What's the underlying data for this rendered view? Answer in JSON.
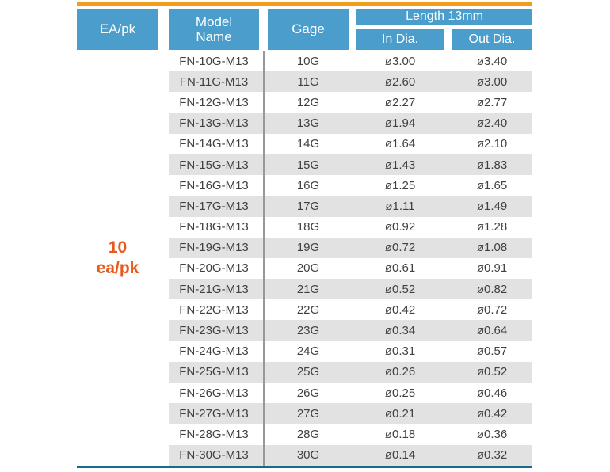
{
  "colors": {
    "top_bar": "#F39C1A",
    "header_blue": "#4B9DCB",
    "stripe_gray": "#E2E2E2",
    "bottom_line_teal": "#1C6A85",
    "ea_pk_orange": "#E8591C",
    "data_text": "#404040"
  },
  "table": {
    "headers": {
      "ea_pk": "EA/pk",
      "model_name": "Model\nName",
      "gage": "Gage",
      "length_group": "Length 13mm",
      "in_dia": "In Dia.",
      "out_dia": "Out Dia."
    },
    "ea_pk_value": {
      "line1": "10",
      "line2": "ea/pk"
    },
    "rows": [
      {
        "model": "FN-10G-M13",
        "gage": "10G",
        "in_dia": "ø3.00",
        "out_dia": "ø3.40"
      },
      {
        "model": "FN-11G-M13",
        "gage": "11G",
        "in_dia": "ø2.60",
        "out_dia": "ø3.00"
      },
      {
        "model": "FN-12G-M13",
        "gage": "12G",
        "in_dia": "ø2.27",
        "out_dia": "ø2.77"
      },
      {
        "model": "FN-13G-M13",
        "gage": "13G",
        "in_dia": "ø1.94",
        "out_dia": "ø2.40"
      },
      {
        "model": "FN-14G-M13",
        "gage": "14G",
        "in_dia": "ø1.64",
        "out_dia": "ø2.10"
      },
      {
        "model": "FN-15G-M13",
        "gage": "15G",
        "in_dia": "ø1.43",
        "out_dia": "ø1.83"
      },
      {
        "model": "FN-16G-M13",
        "gage": "16G",
        "in_dia": "ø1.25",
        "out_dia": "ø1.65"
      },
      {
        "model": "FN-17G-M13",
        "gage": "17G",
        "in_dia": "ø1.11",
        "out_dia": "ø1.49"
      },
      {
        "model": "FN-18G-M13",
        "gage": "18G",
        "in_dia": "ø0.92",
        "out_dia": "ø1.28"
      },
      {
        "model": "FN-19G-M13",
        "gage": "19G",
        "in_dia": "ø0.72",
        "out_dia": "ø1.08"
      },
      {
        "model": "FN-20G-M13",
        "gage": "20G",
        "in_dia": "ø0.61",
        "out_dia": "ø0.91"
      },
      {
        "model": "FN-21G-M13",
        "gage": "21G",
        "in_dia": "ø0.52",
        "out_dia": "ø0.82"
      },
      {
        "model": "FN-22G-M13",
        "gage": "22G",
        "in_dia": "ø0.42",
        "out_dia": "ø0.72"
      },
      {
        "model": "FN-23G-M13",
        "gage": "23G",
        "in_dia": "ø0.34",
        "out_dia": "ø0.64"
      },
      {
        "model": "FN-24G-M13",
        "gage": "24G",
        "in_dia": "ø0.31",
        "out_dia": "ø0.57"
      },
      {
        "model": "FN-25G-M13",
        "gage": "25G",
        "in_dia": "ø0.26",
        "out_dia": "ø0.52"
      },
      {
        "model": "FN-26G-M13",
        "gage": "26G",
        "in_dia": "ø0.25",
        "out_dia": "ø0.46"
      },
      {
        "model": "FN-27G-M13",
        "gage": "27G",
        "in_dia": "ø0.21",
        "out_dia": "ø0.42"
      },
      {
        "model": "FN-28G-M13",
        "gage": "28G",
        "in_dia": "ø0.18",
        "out_dia": "ø0.36"
      },
      {
        "model": "FN-30G-M13",
        "gage": "30G",
        "in_dia": "ø0.14",
        "out_dia": "ø0.32"
      }
    ]
  }
}
